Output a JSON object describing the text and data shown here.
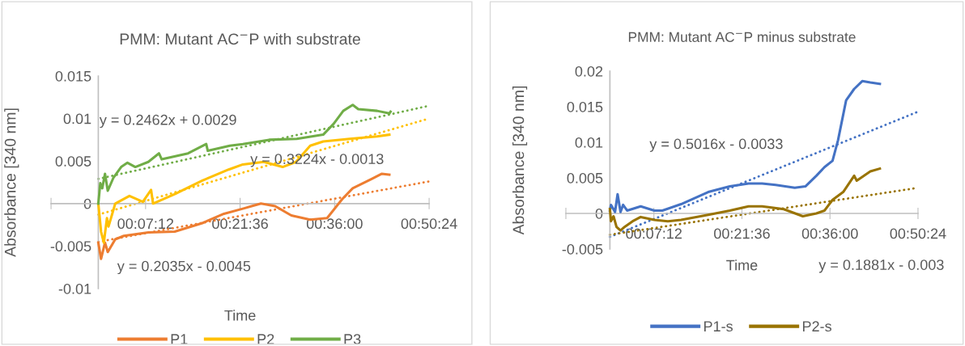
{
  "chart_data": [
    {
      "type": "line",
      "title": "PMM: Mutant AC$^{−}$P with substrate",
      "xlabel": "Time",
      "ylabel": "Absorbance [340 nm]",
      "xlim": [
        -0.12,
        0.84
      ],
      "xticks": [
        {
          "value": -0.12,
          "label": null
        },
        {
          "value": 0.12,
          "label": "00:07:12"
        },
        {
          "value": 0.36,
          "label": "00:21:36"
        },
        {
          "value": 0.6,
          "label": "00:36:00"
        },
        {
          "value": 0.84,
          "label": "00:50:24"
        }
      ],
      "ylim": [
        -0.01,
        0.015
      ],
      "yticks": [
        -0.01,
        -0.005,
        0,
        0.005,
        0.01,
        0.015
      ],
      "legend": "bottom",
      "series": [
        {
          "name": "P1",
          "color": "#ed7d31",
          "x": [
            0.0,
            0.007,
            0.017,
            0.024,
            0.043,
            0.065,
            0.127,
            0.194,
            0.264,
            0.319,
            0.367,
            0.413,
            0.449,
            0.49,
            0.538,
            0.581,
            0.619,
            0.646,
            0.694,
            0.72,
            0.739
          ],
          "values": [
            -0.0046,
            -0.0065,
            -0.0046,
            -0.0057,
            -0.0042,
            -0.0038,
            -0.0034,
            -0.0033,
            -0.0023,
            -0.0012,
            -0.0006,
            0.0,
            -0.0003,
            -0.0014,
            -0.0019,
            -0.0017,
            0.0005,
            0.0018,
            0.0029,
            0.0035,
            0.0034
          ]
        },
        {
          "name": "P2",
          "color": "#ffc000",
          "x": [
            0.0,
            0.007,
            0.014,
            0.022,
            0.026,
            0.043,
            0.079,
            0.113,
            0.134,
            0.139,
            0.194,
            0.264,
            0.331,
            0.367,
            0.42,
            0.468,
            0.502,
            0.538,
            0.571,
            0.638,
            0.708,
            0.739
          ],
          "values": [
            0.0,
            -0.0033,
            -0.0046,
            -0.0017,
            -0.0027,
            0.0,
            0.0009,
            0.0002,
            0.0016,
            0.0,
            0.0011,
            0.0027,
            0.004,
            0.0046,
            0.0049,
            0.0043,
            0.0049,
            0.0068,
            0.0073,
            0.0076,
            0.0079,
            0.0081
          ]
        },
        {
          "name": "P3",
          "color": "#70ad47",
          "x": [
            0.0,
            0.005,
            0.01,
            0.017,
            0.024,
            0.038,
            0.058,
            0.074,
            0.094,
            0.127,
            0.154,
            0.161,
            0.228,
            0.274,
            0.278,
            0.334,
            0.367,
            0.434,
            0.504,
            0.571,
            0.598,
            0.622,
            0.646,
            0.66,
            0.708,
            0.739,
            0.742
          ],
          "values": [
            0.0,
            0.0024,
            0.0018,
            0.0035,
            0.0015,
            0.003,
            0.0043,
            0.0048,
            0.0043,
            0.0049,
            0.0059,
            0.0052,
            0.0059,
            0.007,
            0.0062,
            0.0068,
            0.007,
            0.0075,
            0.0076,
            0.0081,
            0.0094,
            0.0109,
            0.0116,
            0.0111,
            0.0109,
            0.0106,
            0.0108
          ]
        },
        {
          "type": "line",
          "line_style": "dotted",
          "color": "#ed7d31",
          "x": [
            0,
            0.84
          ],
          "values": [
            -0.0045,
            0.0026
          ]
        },
        {
          "type": "line",
          "line_style": "dotted",
          "color": "#ffc000",
          "x": [
            0,
            0.84
          ],
          "values": [
            -0.0013,
            0.01
          ]
        },
        {
          "type": "line",
          "line_style": "dotted",
          "color": "#70ad47",
          "x": [
            0,
            0.84
          ],
          "values": [
            0.0029,
            0.0115
          ]
        }
      ],
      "annotations": [
        "y = 0.2462x + 0.0029",
        "y = 0.3224x - 0.0013",
        "y = 0.2035x - 0.0045"
      ]
    },
    {
      "type": "line",
      "title": "PMM: Mutant AC$^{−}$P minus substrate",
      "xlabel": "Time",
      "ylabel": "Absorbance [340 nm]",
      "xlim": [
        -0.12,
        0.84
      ],
      "xticks": [
        {
          "value": -0.12,
          "label": null
        },
        {
          "value": 0.12,
          "label": "00:07:12"
        },
        {
          "value": 0.36,
          "label": "00:21:36"
        },
        {
          "value": 0.6,
          "label": "00:36:00"
        },
        {
          "value": 0.84,
          "label": "00:50:24"
        }
      ],
      "ylim": [
        -0.005,
        0.02
      ],
      "yticks": [
        -0.005,
        0,
        0.005,
        0.01,
        0.015,
        0.02
      ],
      "legend": "bottom",
      "series": [
        {
          "name": "P1-s",
          "color": "#4472c4",
          "x": [
            0.0,
            0.003,
            0.014,
            0.021,
            0.029,
            0.036,
            0.047,
            0.084,
            0.121,
            0.143,
            0.194,
            0.268,
            0.327,
            0.378,
            0.415,
            0.452,
            0.504,
            0.533,
            0.563,
            0.585,
            0.607,
            0.622,
            0.644,
            0.666,
            0.688,
            0.71,
            0.736
          ],
          "values": [
            0.0004,
            0.0012,
            0.0002,
            0.0027,
            0.0002,
            0.0012,
            0.0004,
            0.001,
            0.0004,
            0.0004,
            0.0013,
            0.003,
            0.0038,
            0.0042,
            0.0042,
            0.004,
            0.0036,
            0.0038,
            0.0053,
            0.0065,
            0.0074,
            0.0103,
            0.0159,
            0.0175,
            0.0186,
            0.0184,
            0.0182
          ]
        },
        {
          "name": "P2-s",
          "color": "#997300",
          "x": [
            0.0,
            0.003,
            0.01,
            0.018,
            0.029,
            0.04,
            0.062,
            0.084,
            0.121,
            0.158,
            0.194,
            0.268,
            0.327,
            0.378,
            0.415,
            0.474,
            0.526,
            0.563,
            0.585,
            0.607,
            0.636,
            0.666,
            0.673,
            0.71,
            0.736
          ],
          "values": [
            0.0006,
            -0.0011,
            -0.0004,
            -0.0019,
            -0.0024,
            -0.0019,
            -0.0011,
            -0.0005,
            -0.0009,
            -0.0011,
            -0.0009,
            -0.0002,
            0.0004,
            0.001,
            0.001,
            0.0006,
            -0.0004,
            0.0,
            0.0004,
            0.0019,
            0.003,
            0.0053,
            0.0046,
            0.0059,
            0.0063
          ]
        },
        {
          "type": "line",
          "line_style": "dotted",
          "color": "#4472c4",
          "x": [
            0,
            0.84
          ],
          "values": [
            -0.0033,
            0.0143
          ]
        },
        {
          "type": "line",
          "line_style": "dotted",
          "color": "#997300",
          "x": [
            0,
            0.84
          ],
          "values": [
            -0.003,
            0.0036
          ]
        }
      ],
      "annotations": [
        "y = 0.5016x - 0.0033",
        "y = 0.1881x - 0.003"
      ]
    }
  ]
}
